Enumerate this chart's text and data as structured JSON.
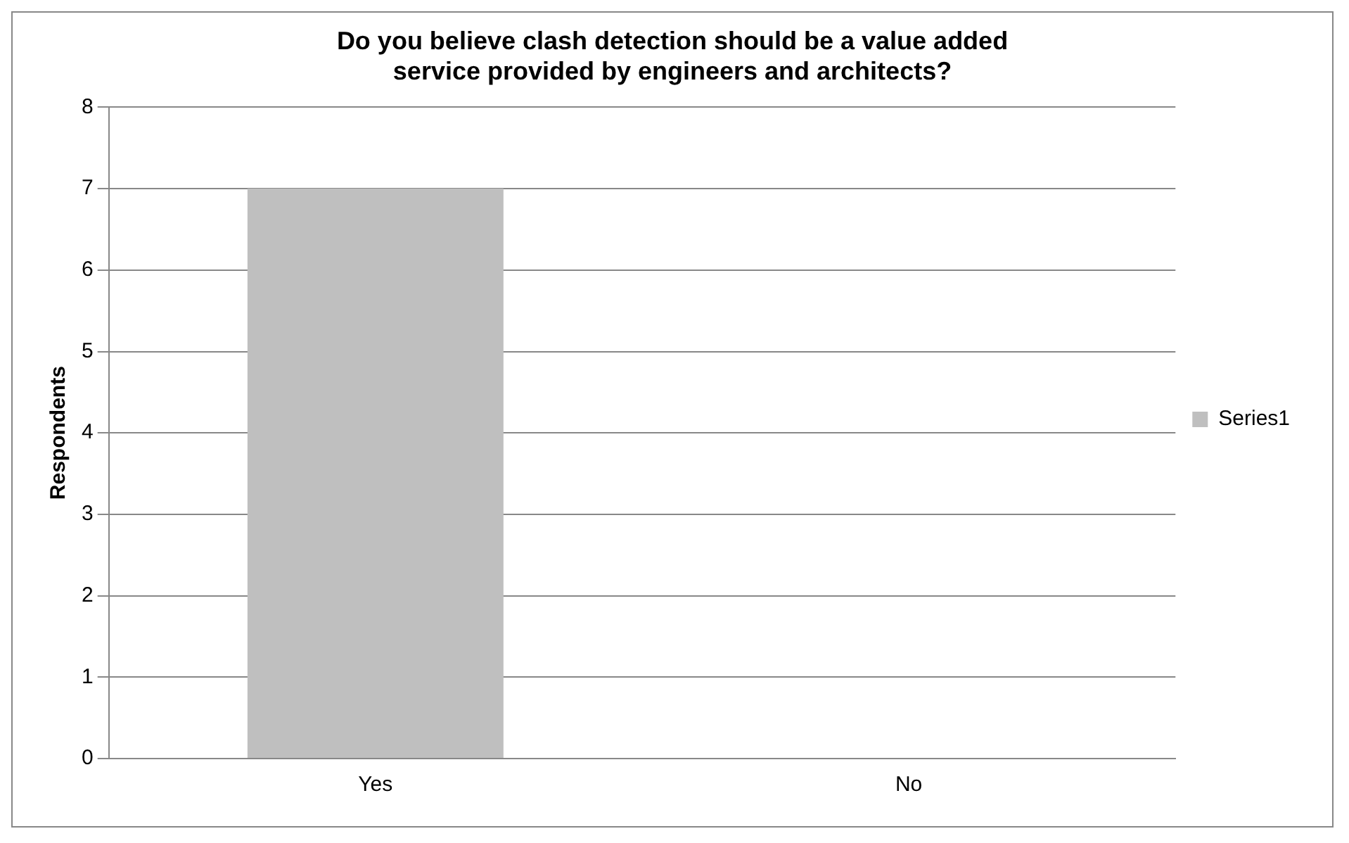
{
  "chart_data": {
    "type": "bar",
    "title": "Do you believe clash detection should be a value added service provided by engineers and architects?",
    "ylabel": "Respondents",
    "categories": [
      "Yes",
      "No"
    ],
    "series": [
      {
        "name": "Series1",
        "color": "#bfbfbf",
        "values": [
          7,
          0
        ]
      }
    ],
    "ylim": [
      0,
      8
    ],
    "yticks": [
      0,
      1,
      2,
      3,
      4,
      5,
      6,
      7,
      8
    ],
    "grid": "y",
    "legend": "right"
  }
}
